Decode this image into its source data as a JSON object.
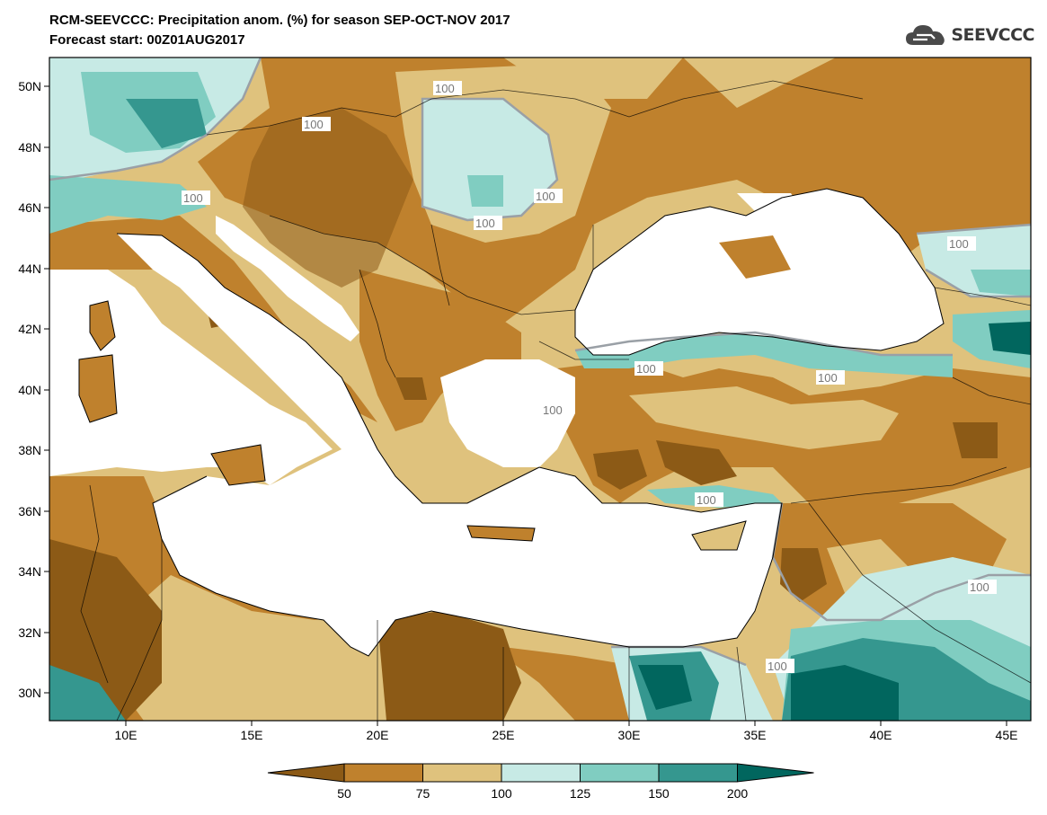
{
  "header": {
    "title_line1": "RCM-SEEVCCC: Precipitation anom. (%) for season SEP-OCT-NOV 2017",
    "title_line2": "Forecast start: 00Z01AUG2017",
    "logo_text": "SEEVCCC",
    "logo_icon": "cloud-logo-icon"
  },
  "map": {
    "y_ticks": [
      "50N",
      "48N",
      "46N",
      "44N",
      "42N",
      "40N",
      "38N",
      "36N",
      "34N",
      "32N",
      "30N"
    ],
    "x_ticks": [
      "10E",
      "15E",
      "20E",
      "25E",
      "30E",
      "35E",
      "40E",
      "45E"
    ],
    "contour_labels": [
      "100",
      "100",
      "100",
      "100",
      "100",
      "100",
      "100",
      "100",
      "100",
      "100",
      "100",
      "100"
    ],
    "colors": {
      "lt50": "#8c5a16",
      "50_75": "#bf812d",
      "75_100": "#dfc27d",
      "100_125": "#c7eae5",
      "125_150": "#80cdc1",
      "150_200": "#35978f",
      "gt200": "#01665e",
      "sea": "#ffffff",
      "contour_100": "#9aa0a6"
    }
  },
  "colorbar": {
    "labels": [
      "50",
      "75",
      "100",
      "125",
      "150",
      "200"
    ],
    "colors": [
      "#8c5a16",
      "#bf812d",
      "#dfc27d",
      "#c7eae5",
      "#80cdc1",
      "#35978f",
      "#01665e"
    ]
  }
}
